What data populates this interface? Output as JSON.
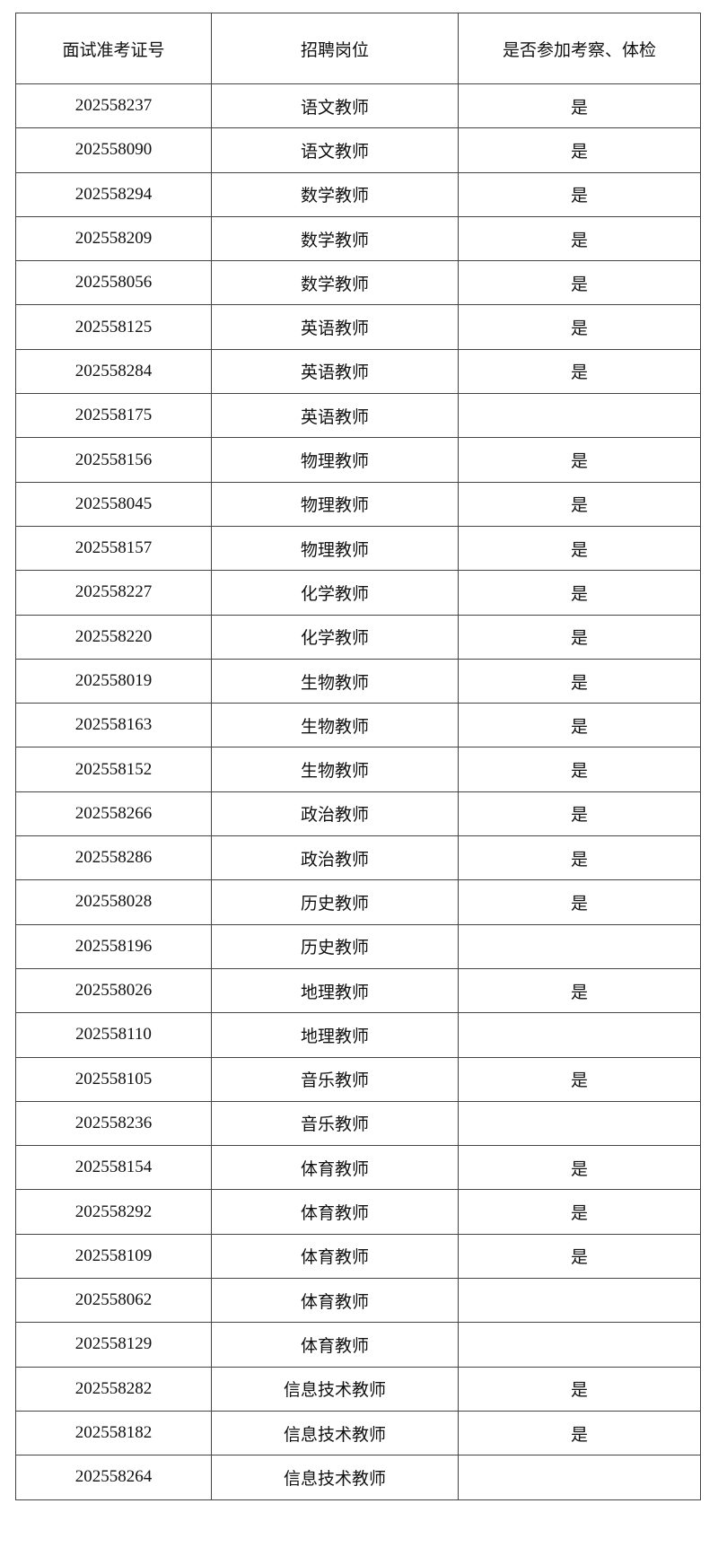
{
  "table": {
    "headers": [
      "面试准考证号",
      "招聘岗位",
      "是否参加考察、体检"
    ],
    "rows": [
      [
        "202558237",
        "语文教师",
        "是"
      ],
      [
        "202558090",
        "语文教师",
        "是"
      ],
      [
        "202558294",
        "数学教师",
        "是"
      ],
      [
        "202558209",
        "数学教师",
        "是"
      ],
      [
        "202558056",
        "数学教师",
        "是"
      ],
      [
        "202558125",
        "英语教师",
        "是"
      ],
      [
        "202558284",
        "英语教师",
        "是"
      ],
      [
        "202558175",
        "英语教师",
        ""
      ],
      [
        "202558156",
        "物理教师",
        "是"
      ],
      [
        "202558045",
        "物理教师",
        "是"
      ],
      [
        "202558157",
        "物理教师",
        "是"
      ],
      [
        "202558227",
        "化学教师",
        "是"
      ],
      [
        "202558220",
        "化学教师",
        "是"
      ],
      [
        "202558019",
        "生物教师",
        "是"
      ],
      [
        "202558163",
        "生物教师",
        "是"
      ],
      [
        "202558152",
        "生物教师",
        "是"
      ],
      [
        "202558266",
        "政治教师",
        "是"
      ],
      [
        "202558286",
        "政治教师",
        "是"
      ],
      [
        "202558028",
        "历史教师",
        "是"
      ],
      [
        "202558196",
        "历史教师",
        ""
      ],
      [
        "202558026",
        "地理教师",
        "是"
      ],
      [
        "202558110",
        "地理教师",
        ""
      ],
      [
        "202558105",
        "音乐教师",
        "是"
      ],
      [
        "202558236",
        "音乐教师",
        ""
      ],
      [
        "202558154",
        "体育教师",
        "是"
      ],
      [
        "202558292",
        "体育教师",
        "是"
      ],
      [
        "202558109",
        "体育教师",
        "是"
      ],
      [
        "202558062",
        "体育教师",
        ""
      ],
      [
        "202558129",
        "体育教师",
        ""
      ],
      [
        "202558282",
        "信息技术教师",
        "是"
      ],
      [
        "202558182",
        "信息技术教师",
        "是"
      ],
      [
        "202558264",
        "信息技术教师",
        ""
      ]
    ]
  }
}
